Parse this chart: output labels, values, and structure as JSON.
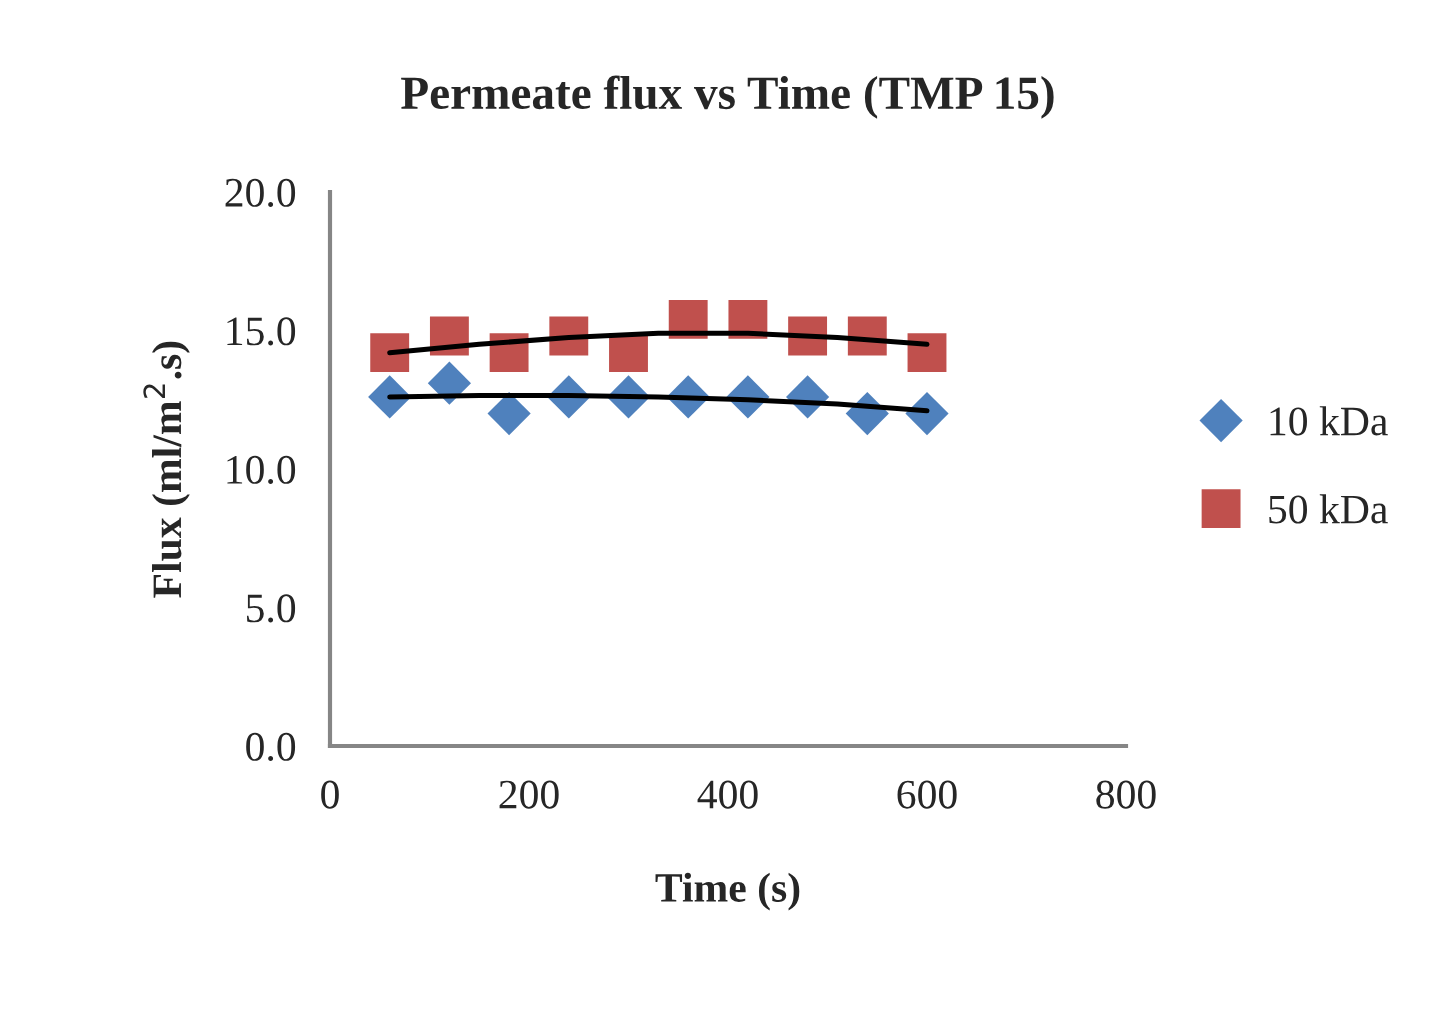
{
  "chart_data": {
    "type": "scatter",
    "title": "Permeate flux vs Time (TMP 15)",
    "xlabel": "Time (s)",
    "ylabel": "Flux (ml/m$^{2}$.s)",
    "x": [
      60,
      120,
      180,
      240,
      300,
      360,
      420,
      480,
      540,
      600
    ],
    "series": [
      {
        "name": "10 kDa",
        "color": "#4f81bd",
        "marker": "diamond",
        "values": [
          12.6,
          13.1,
          12.0,
          12.6,
          12.6,
          12.6,
          12.6,
          12.6,
          12.0,
          12.0
        ]
      },
      {
        "name": "50 kDa",
        "color": "#c0504d",
        "marker": "square",
        "values": [
          14.2,
          14.8,
          14.2,
          14.8,
          14.2,
          15.4,
          15.4,
          14.8,
          14.8,
          14.2
        ]
      },
      {
        "type": "line",
        "color": "#000000",
        "x": [
          60,
          150,
          240,
          330,
          420,
          510,
          600
        ],
        "values": [
          12.6,
          12.65,
          12.65,
          12.6,
          12.5,
          12.35,
          12.1
        ]
      },
      {
        "type": "line",
        "color": "#000000",
        "x": [
          60,
          150,
          240,
          330,
          420,
          510,
          600
        ],
        "values": [
          14.2,
          14.5,
          14.75,
          14.9,
          14.9,
          14.75,
          14.5
        ]
      }
    ],
    "xlim": [
      0,
      800
    ],
    "xticks": [
      0,
      200,
      400,
      600,
      800
    ],
    "ylim": [
      0,
      20
    ],
    "yticks": [
      {
        "value": 0,
        "label": "0.0"
      },
      {
        "value": 5,
        "label": "5.0"
      },
      {
        "value": 10,
        "label": "10.0"
      },
      {
        "value": 15,
        "label": "15.0"
      },
      {
        "value": 20,
        "label": "20.0"
      }
    ],
    "grid": false,
    "legend": "right"
  }
}
